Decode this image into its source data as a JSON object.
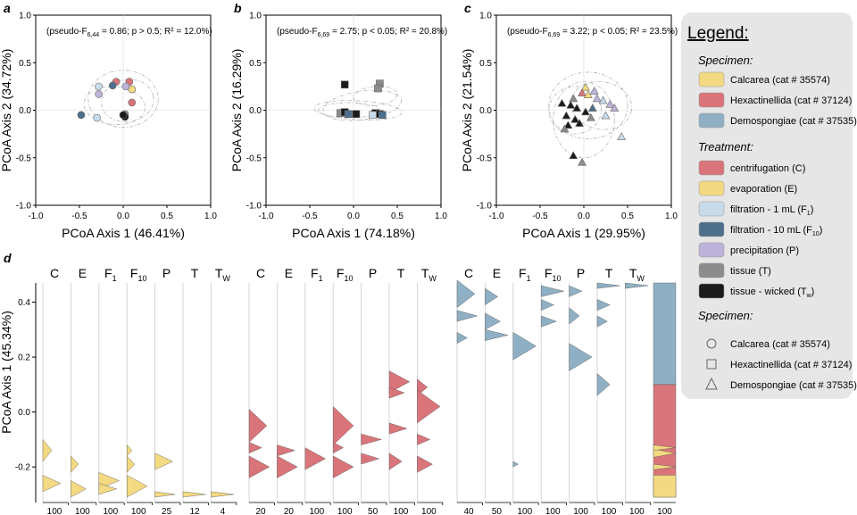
{
  "panels": [
    {
      "letter": "a",
      "stats": {
        "pre": "(pseudo-F",
        "sub": "6,44",
        "post": " = 0.86; p > 0.5; R² = 12.0%)"
      }
    },
    {
      "letter": "b",
      "stats": {
        "pre": "(pseudo-F",
        "sub": "6,69",
        "post": " = 2.75; p < 0.05; R² = 20.8%)"
      }
    },
    {
      "letter": "c",
      "stats": {
        "pre": "(pseudo-F",
        "sub": "6,69",
        "post": " = 3.22; p < 0.05; R² = 23.5%)"
      }
    },
    {
      "letter": "d"
    }
  ],
  "colors": {
    "calcarea": "#f3d981",
    "hexactinellida": "#d9757a",
    "demospongiae": "#8fb0c4",
    "C": "#d9757a",
    "E": "#f3d981",
    "F1": "#c8dbea",
    "F10": "#4d6f8c",
    "P": "#bdb2d9",
    "T": "#8c8c8c",
    "TW": "#1b1b1b"
  },
  "chart_data": [
    {
      "type": "scatter",
      "panel": "a",
      "xlabel": "PCoA Axis 1 (46.41%)",
      "ylabel": "PCoA Axis 2 (34.72%)",
      "xlim": [
        -1,
        1
      ],
      "ylim": [
        -1,
        1
      ],
      "xticks": [
        "-1.0",
        "-0.5",
        "0.0",
        "0.5",
        "1.0"
      ],
      "yticks": [
        "-1.0",
        "-0.5",
        "0.0",
        "0.5",
        "1.0"
      ],
      "points": [
        {
          "x": -0.08,
          "y": 0.3,
          "t": "C",
          "s": "circle"
        },
        {
          "x": 0.07,
          "y": 0.3,
          "t": "C",
          "s": "circle"
        },
        {
          "x": 0.1,
          "y": 0.08,
          "t": "C",
          "s": "circle"
        },
        {
          "x": 0.1,
          "y": 0.22,
          "t": "E",
          "s": "circle"
        },
        {
          "x": -0.28,
          "y": 0.25,
          "t": "F1",
          "s": "circle"
        },
        {
          "x": -0.3,
          "y": -0.08,
          "t": "F1",
          "s": "circle"
        },
        {
          "x": -0.48,
          "y": -0.05,
          "t": "F10",
          "s": "circle"
        },
        {
          "x": -0.12,
          "y": 0.26,
          "t": "F10",
          "s": "circle"
        },
        {
          "x": -0.28,
          "y": 0.17,
          "t": "P",
          "s": "circle"
        },
        {
          "x": 0.03,
          "y": 0.25,
          "t": "P",
          "s": "circle"
        },
        {
          "x": 0.02,
          "y": -0.04,
          "t": "T",
          "s": "circle"
        },
        {
          "x": 0.02,
          "y": -0.07,
          "t": "TW",
          "s": "circle"
        },
        {
          "x": 0.0,
          "y": -0.05,
          "t": "TW",
          "s": "circle"
        }
      ]
    },
    {
      "type": "scatter",
      "panel": "b",
      "xlabel": "PCoA Axis 1 (74.18%)",
      "ylabel": "PCoA Axis 2 (16.29%)",
      "xlim": [
        -1,
        1
      ],
      "ylim": [
        -1,
        1
      ],
      "xticks": [
        "-1.0",
        "-0.5",
        "0.0",
        "0.5",
        "1.0"
      ],
      "yticks": [
        "-1.0",
        "-0.5",
        "0.0",
        "0.5",
        "1.0"
      ],
      "points": [
        {
          "x": -0.1,
          "y": 0.27,
          "t": "TW",
          "s": "square"
        },
        {
          "x": 0.3,
          "y": 0.28,
          "t": "T",
          "s": "square"
        },
        {
          "x": 0.28,
          "y": 0.23,
          "t": "T",
          "s": "square"
        },
        {
          "x": -0.15,
          "y": -0.03,
          "t": "T",
          "s": "square"
        },
        {
          "x": -0.1,
          "y": -0.02,
          "t": "TW",
          "s": "square"
        },
        {
          "x": -0.06,
          "y": -0.04,
          "t": "F10",
          "s": "square"
        },
        {
          "x": 0.25,
          "y": -0.03,
          "t": "TW",
          "s": "square"
        },
        {
          "x": 0.3,
          "y": -0.04,
          "t": "TW",
          "s": "square"
        },
        {
          "x": 0.33,
          "y": -0.05,
          "t": "F10",
          "s": "square"
        },
        {
          "x": 0.22,
          "y": -0.05,
          "t": "F1",
          "s": "square"
        },
        {
          "x": 0.03,
          "y": -0.04,
          "t": "TW",
          "s": "square"
        }
      ]
    },
    {
      "type": "scatter",
      "panel": "c",
      "xlabel": "PCoA Axis 1 (29.95%)",
      "ylabel": "PCoA Axis 2 (21.54%)",
      "xlim": [
        -1,
        1
      ],
      "ylim": [
        -1,
        1
      ],
      "xticks": [
        "-1.0",
        "-0.5",
        "0.0",
        "0.5",
        "1.0"
      ],
      "yticks": [
        "-1.0",
        "-0.5",
        "0.0",
        "0.5",
        "1.0"
      ],
      "points": [
        {
          "x": 0.02,
          "y": 0.24,
          "t": "E",
          "s": "triangle"
        },
        {
          "x": -0.02,
          "y": 0.18,
          "t": "C",
          "s": "triangle"
        },
        {
          "x": 0.05,
          "y": 0.16,
          "t": "E",
          "s": "triangle"
        },
        {
          "x": -0.25,
          "y": 0.07,
          "t": "TW",
          "s": "triangle"
        },
        {
          "x": -0.15,
          "y": 0.05,
          "t": "TW",
          "s": "triangle"
        },
        {
          "x": -0.08,
          "y": 0.02,
          "t": "TW",
          "s": "triangle"
        },
        {
          "x": -0.2,
          "y": -0.06,
          "t": "TW",
          "s": "triangle"
        },
        {
          "x": -0.1,
          "y": -0.1,
          "t": "TW",
          "s": "triangle"
        },
        {
          "x": -0.18,
          "y": -0.16,
          "t": "TW",
          "s": "triangle"
        },
        {
          "x": -0.05,
          "y": -0.14,
          "t": "TW",
          "s": "triangle"
        },
        {
          "x": 0.08,
          "y": -0.08,
          "t": "T",
          "s": "triangle"
        },
        {
          "x": 0.1,
          "y": 0.02,
          "t": "F10",
          "s": "triangle"
        },
        {
          "x": 0.15,
          "y": 0.12,
          "t": "P",
          "s": "triangle"
        },
        {
          "x": 0.22,
          "y": 0.1,
          "t": "F1",
          "s": "triangle"
        },
        {
          "x": 0.3,
          "y": 0.06,
          "t": "P",
          "s": "triangle"
        },
        {
          "x": 0.35,
          "y": 0.02,
          "t": "P",
          "s": "triangle"
        },
        {
          "x": 0.25,
          "y": -0.06,
          "t": "F1",
          "s": "triangle"
        },
        {
          "x": 0.43,
          "y": -0.28,
          "t": "F1",
          "s": "triangle"
        },
        {
          "x": -0.12,
          "y": -0.48,
          "t": "TW",
          "s": "triangle"
        },
        {
          "x": -0.02,
          "y": -0.55,
          "t": "T",
          "s": "triangle"
        },
        {
          "x": -0.22,
          "y": -0.2,
          "t": "T",
          "s": "triangle"
        },
        {
          "x": -0.12,
          "y": 0.12,
          "t": "T",
          "s": "triangle"
        },
        {
          "x": 0.02,
          "y": -0.02,
          "t": "TW",
          "s": "triangle"
        },
        {
          "x": 0.12,
          "y": 0.2,
          "t": "P",
          "s": "triangle"
        }
      ]
    },
    {
      "type": "area",
      "panel": "d",
      "ylabel": "PCoA Axis 1 (45.34%)",
      "ylim": [
        -0.31,
        0.47
      ],
      "yticks": [
        "-0.2",
        "0.0",
        "0.2",
        "0.4"
      ],
      "groups": [
        {
          "specimen": "calcarea",
          "columns": [
            {
              "t": "C",
              "xmax": "100",
              "peaks": [
                [
                  -0.14,
                  0.04,
                  0.35
                ],
                [
                  -0.26,
                  0.03,
                  0.7
                ]
              ]
            },
            {
              "t": "E",
              "xmax": "100",
              "peaks": [
                [
                  -0.19,
                  0.03,
                  0.3
                ],
                [
                  -0.28,
                  0.03,
                  0.6
                ]
              ]
            },
            {
              "t": "F1",
              "xmax": "100",
              "peaks": [
                [
                  -0.25,
                  0.03,
                  0.8
                ],
                [
                  -0.28,
                  0.02,
                  0.7
                ]
              ]
            },
            {
              "t": "F10",
              "xmax": "100",
              "peaks": [
                [
                  -0.14,
                  0.02,
                  0.2
                ],
                [
                  -0.19,
                  0.03,
                  0.3
                ],
                [
                  -0.27,
                  0.04,
                  0.8
                ]
              ]
            },
            {
              "t": "P",
              "xmax": "25",
              "peaks": [
                [
                  -0.18,
                  0.03,
                  0.7
                ],
                [
                  -0.3,
                  0.01,
                  0.8
                ]
              ]
            },
            {
              "t": "T",
              "xmax": "12",
              "peaks": [
                [
                  -0.3,
                  0.01,
                  0.9
                ]
              ]
            },
            {
              "t": "TW",
              "xmax": "4",
              "peaks": [
                [
                  -0.3,
                  0.01,
                  0.9
                ]
              ]
            }
          ]
        },
        {
          "specimen": "hexactinellida",
          "columns": [
            {
              "t": "C",
              "xmax": "20",
              "peaks": [
                [
                  -0.05,
                  0.06,
                  0.7
                ],
                [
                  -0.13,
                  0.02,
                  0.5
                ],
                [
                  -0.2,
                  0.04,
                  0.8
                ]
              ]
            },
            {
              "t": "E",
              "xmax": "20",
              "peaks": [
                [
                  -0.14,
                  0.02,
                  0.7
                ],
                [
                  -0.2,
                  0.04,
                  0.8
                ]
              ]
            },
            {
              "t": "F1",
              "xmax": "100",
              "peaks": [
                [
                  -0.17,
                  0.04,
                  0.8
                ]
              ]
            },
            {
              "t": "F10",
              "xmax": "100",
              "peaks": [
                [
                  -0.05,
                  0.07,
                  0.8
                ],
                [
                  -0.13,
                  0.02,
                  0.4
                ],
                [
                  -0.2,
                  0.04,
                  0.8
                ]
              ]
            },
            {
              "t": "P",
              "xmax": "50",
              "peaks": [
                [
                  -0.1,
                  0.02,
                  0.8
                ],
                [
                  -0.17,
                  0.02,
                  0.7
                ]
              ]
            },
            {
              "t": "T",
              "xmax": "100",
              "peaks": [
                [
                  0.11,
                  0.04,
                  0.8
                ],
                [
                  0.07,
                  0.02,
                  0.6
                ],
                [
                  -0.06,
                  0.02,
                  0.7
                ],
                [
                  -0.18,
                  0.03,
                  0.5
                ]
              ]
            },
            {
              "t": "TW",
              "xmax": "100",
              "peaks": [
                [
                  0.09,
                  0.03,
                  0.4
                ],
                [
                  0.02,
                  0.06,
                  0.9
                ],
                [
                  -0.1,
                  0.02,
                  0.5
                ],
                [
                  -0.19,
                  0.03,
                  0.6
                ]
              ]
            }
          ]
        },
        {
          "specimen": "demospongiae",
          "columns": [
            {
              "t": "C",
              "xmax": "40",
              "peaks": [
                [
                  0.43,
                  0.05,
                  0.7
                ],
                [
                  0.35,
                  0.02,
                  0.8
                ],
                [
                  0.27,
                  0.02,
                  0.4
                ]
              ]
            },
            {
              "t": "E",
              "xmax": "50",
              "peaks": [
                [
                  0.42,
                  0.03,
                  0.5
                ],
                [
                  0.33,
                  0.03,
                  0.6
                ],
                [
                  0.28,
                  0.02,
                  0.9
                ]
              ]
            },
            {
              "t": "F1",
              "xmax": "100",
              "peaks": [
                [
                  0.24,
                  0.05,
                  0.9
                ],
                [
                  -0.19,
                  0.01,
                  0.2
                ]
              ]
            },
            {
              "t": "F10",
              "xmax": "100",
              "peaks": [
                [
                  0.44,
                  0.02,
                  0.9
                ],
                [
                  0.39,
                  0.02,
                  0.5
                ],
                [
                  0.33,
                  0.02,
                  0.6
                ]
              ]
            },
            {
              "t": "P",
              "xmax": "100",
              "peaks": [
                [
                  0.44,
                  0.02,
                  0.5
                ],
                [
                  0.35,
                  0.03,
                  0.4
                ],
                [
                  0.2,
                  0.05,
                  0.9
                ]
              ]
            },
            {
              "t": "T",
              "xmax": "100",
              "peaks": [
                [
                  0.46,
                  0.01,
                  0.9
                ],
                [
                  0.39,
                  0.02,
                  0.5
                ],
                [
                  0.33,
                  0.02,
                  0.4
                ],
                [
                  0.1,
                  0.04,
                  0.5
                ]
              ]
            },
            {
              "t": "TW",
              "xmax": "100",
              "peaks": [
                [
                  0.46,
                  0.01,
                  0.9
                ]
              ]
            }
          ]
        }
      ],
      "composite": {
        "xmax": "100",
        "bands": [
          [
            0.1,
            0.47,
            "demospongiae"
          ],
          [
            -0.31,
            0.1,
            "hexactinellida"
          ]
        ],
        "specks": [
          [
            -0.27,
            0.03
          ],
          [
            -0.2,
            0.01
          ],
          [
            -0.15,
            0.015
          ],
          [
            -0.13,
            0.01
          ]
        ]
      }
    }
  ],
  "column_labels": [
    {
      "t": "C",
      "main": "C",
      "sub": ""
    },
    {
      "t": "E",
      "main": "E",
      "sub": ""
    },
    {
      "t": "F1",
      "main": "F",
      "sub": "1"
    },
    {
      "t": "F10",
      "main": "F",
      "sub": "10"
    },
    {
      "t": "P",
      "main": "P",
      "sub": ""
    },
    {
      "t": "T",
      "main": "T",
      "sub": ""
    },
    {
      "t": "TW",
      "main": "T",
      "sub": "W"
    }
  ],
  "legend": {
    "title": "Legend:",
    "specimen_title": "Specimen:",
    "treatment_title": "Treatment:",
    "specimen_colors": [
      {
        "key": "calcarea",
        "label": "Calcarea (cat # 35574)"
      },
      {
        "key": "hexactinellida",
        "label": "Hexactinellida (cat # 37124)"
      },
      {
        "key": "demospongiae",
        "label": "Demospongiae (cat # 37535)"
      }
    ],
    "treatments": [
      {
        "key": "C",
        "label": "centrifugation (C)",
        "sub": ""
      },
      {
        "key": "E",
        "label": "evaporation (E)",
        "sub": ""
      },
      {
        "key": "F1",
        "label": "filtration - 1 mL (F",
        "sub": "1",
        "tail": ")"
      },
      {
        "key": "F10",
        "label": "filtration - 10 mL (F",
        "sub": "10",
        "tail": ")"
      },
      {
        "key": "P",
        "label": "precipitation (P)",
        "sub": ""
      },
      {
        "key": "T",
        "label": "tissue (T)",
        "sub": ""
      },
      {
        "key": "TW",
        "label": "tissue - wicked (T",
        "sub": "w",
        "tail": ")"
      }
    ],
    "specimen_shapes": [
      {
        "shape": "circle",
        "label": "Calcarea (cat # 35574)"
      },
      {
        "shape": "square",
        "label": "Hexactinellida (cat # 37124)"
      },
      {
        "shape": "triangle",
        "label": "Demospongiae (cat # 37535)"
      }
    ]
  }
}
